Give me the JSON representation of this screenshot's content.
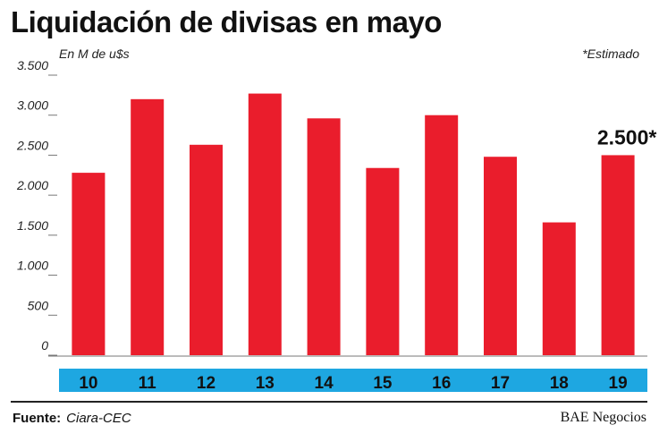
{
  "chart_data": {
    "type": "bar",
    "title": "Liquidación de divisas en mayo",
    "ylabel": "En M de u$s",
    "annotation": "*Estimado",
    "categories": [
      "10",
      "11",
      "12",
      "13",
      "14",
      "15",
      "16",
      "17",
      "18",
      "19"
    ],
    "values": [
      2280,
      3200,
      2630,
      3270,
      2960,
      2340,
      3000,
      2480,
      1660,
      2500
    ],
    "data_labels": [
      null,
      null,
      null,
      null,
      null,
      null,
      null,
      null,
      null,
      "2.500*"
    ],
    "ylim": [
      0,
      3500
    ],
    "yticks": [
      0,
      500,
      1000,
      1500,
      2000,
      2500,
      3000,
      3500
    ],
    "ytick_labels": [
      "0",
      "500",
      "1.000",
      "1.500",
      "2.000",
      "2.500",
      "3.000",
      "3.500"
    ],
    "grid": false,
    "colors": {
      "bar": "#ea1d2c",
      "category_band": "#1ea7e1",
      "axis": "#777777"
    }
  },
  "footer": {
    "source_label": "Fuente:",
    "source_value": "Ciara-CEC",
    "brand": "BAE Negocios"
  }
}
